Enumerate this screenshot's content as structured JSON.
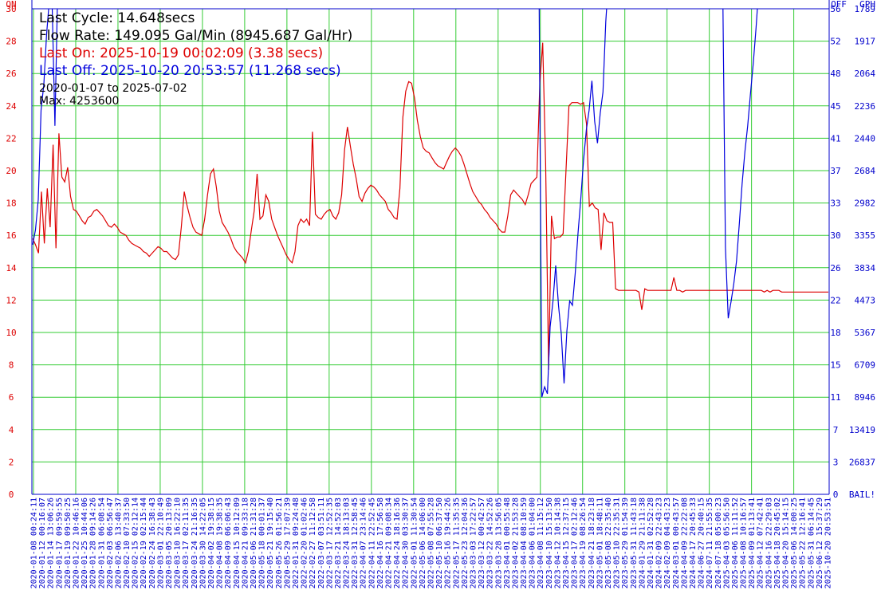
{
  "info": {
    "last_cycle": "Last Cycle: 14.648secs",
    "flow_rate": "Flow Rate: 149.095 Gal/Min (8945.687 Gal/Hr)",
    "last_on": "Last On: 2025-10-19 00:02:09 (3.38 secs)",
    "last_off": "Last Off: 2025-10-20 20:53:57 (11.268 secs)",
    "date_range": "2020-01-07 to 2025-07-02",
    "max": "Max: 4253600"
  },
  "colors": {
    "on_series": "#dd0000",
    "off_series": "#0000dd",
    "grid": "#33cc33",
    "axis": "#0000cc",
    "left_axis_text": "#dd0000",
    "text": "#000000"
  },
  "chart_data": {
    "type": "line",
    "grid": true,
    "left_axis": {
      "header": "ON",
      "ticks": [
        0,
        2,
        4,
        6,
        8,
        10,
        12,
        14,
        16,
        18,
        20,
        22,
        24,
        26,
        28,
        30
      ],
      "ylim": [
        0,
        30
      ]
    },
    "right_axis": {
      "header_off": "OFF",
      "header_gph": "GPH",
      "off_ticks": [
        "0",
        "3",
        "7",
        "11",
        "15",
        "18",
        "22",
        "26",
        "30",
        "33",
        "37",
        "41",
        "45",
        "48",
        "52",
        "56"
      ],
      "gph_ticks": [
        "BAIL!",
        "26837",
        "13419",
        "8946",
        "6709",
        "5367",
        "4473",
        "3834",
        "3355",
        "2982",
        "2684",
        "2440",
        "2236",
        "2064",
        "1917",
        "1789"
      ],
      "ylim": [
        0,
        56
      ]
    },
    "x_labels": [
      "2020-01-08 00:24:11",
      "2020-01-12 00:16:07",
      "2020-01-14 13:06:26",
      "2020-01-17 09:59:55",
      "2020-01-19 09:50:25",
      "2020-01-22 10:46:16",
      "2020-01-25 10:44:06",
      "2020-01-28 09:14:26",
      "2020-01-31 06:08:54",
      "2020-02-03 06:56:47",
      "2020-02-06 13:40:37",
      "2020-02-10 07:33:50",
      "2020-02-15 02:12:14",
      "2020-02-19 02:15:44",
      "2020-02-24 16:38:43",
      "2020-03-01 22:10:49",
      "2020-03-05 20:13:09",
      "2020-03-10 16:22:10",
      "2020-03-17 02:11:35",
      "2020-03-24 21:16:35",
      "2020-03-30 14:22:05",
      "2020-04-02 19:38:15",
      "2020-04-08 19:38:35",
      "2020-04-09 06:06:43",
      "2020-04-15 10:12:09",
      "2020-04-21 09:33:18",
      "2020-05-06 21:31:28",
      "2020-05-18 00:01:37",
      "2020-05-21 19:15:40",
      "2020-05-26 01:56:21",
      "2020-05-29 17:07:39",
      "2022-01-31 09:24:48",
      "2022-02-20 01:02:46",
      "2022-02-27 11:12:58",
      "2022-03-07 03:51:11",
      "2022-03-17 12:52:35",
      "2022-03-21 14:52:03",
      "2022-03-24 18:13:03",
      "2022-03-31 12:58:45",
      "2022-04-07 23:14:46",
      "2022-04-11 22:52:45",
      "2022-04-16 17:56:58",
      "2022-04-21 09:08:34",
      "2022-04-24 18:16:36",
      "2022-04-30 03:30:37",
      "2022-05-01 11:30:54",
      "2022-05-06 14:06:00",
      "2022-05-08 07:55:28",
      "2022-05-10 06:37:50",
      "2022-05-16 19:44:26",
      "2022-05-17 11:35:35",
      "2022-05-23 12:04:36",
      "2023-03-03 17:22:57",
      "2023-03-12 00:42:57",
      "2023-03-22 14:52:26",
      "2023-03-28 13:56:05",
      "2023-04-01 00:55:48",
      "2023-04-02 21:53:28",
      "2023-04-04 08:10:59",
      "2023-04-06 01:04:00",
      "2023-04-08 11:15:12",
      "2023-04-10 15:13:50",
      "2023-04-12 10:14:38",
      "2023-04-15 12:37:15",
      "2023-04-17 02:12:46",
      "2023-04-19 08:26:54",
      "2023-04-21 18:23:18",
      "2023-05-01 18:48:11",
      "2023-05-08 22:35:40",
      "2023-05-10 22:35:31",
      "2023-05-29 01:54:39",
      "2023-05-31 11:43:18",
      "2024-01-29 21:11:38",
      "2024-01-31 02:52:28",
      "2024-02-09 22:43:23",
      "2024-02-09 04:43:23",
      "2024-03-01 00:43:57",
      "2024-04-09 22:22:08",
      "2024-04-17 20:45:33",
      "2024-06-27 20:40:15",
      "2024-07-11 21:55:35",
      "2024-07-18 05:00:23",
      "2025-04-03 05:56:50",
      "2025-04-06 11:11:52",
      "2025-04-08 10:16:57",
      "2025-04-09 01:13:41",
      "2025-04-12 07:42:41",
      "2025-04-16 22:29:03",
      "2025-04-18 20:45:02",
      "2025-04-20 15:14:15",
      "2025-05-06 14:00:25",
      "2025-05-22 12:16:41",
      "2025-05-31 06:14:45",
      "2025-06-12 15:37:29",
      "2025-10-20 20:53:51"
    ],
    "series": [
      {
        "name": "Last On",
        "axis": "left",
        "values": [
          15.8,
          15.4,
          14.9,
          18.7,
          15.5,
          18.9,
          16.5,
          21.6,
          15.2,
          22.3,
          19.6,
          19.3,
          20.2,
          18.4,
          17.6,
          17.5,
          17.2,
          16.9,
          16.7,
          17.1,
          17.2,
          17.5,
          17.6,
          17.4,
          17.2,
          16.9,
          16.6,
          16.5,
          16.7,
          16.5,
          16.2,
          16.1,
          16,
          15.7,
          15.5,
          15.4,
          15.3,
          15.2,
          15,
          14.9,
          14.7,
          14.9,
          15.1,
          15.3,
          15.2,
          15,
          15,
          14.8,
          14.6,
          14.5,
          14.8,
          16.5,
          18.7,
          17.8,
          17.1,
          16.5,
          16.2,
          16.1,
          16,
          17,
          18.5,
          19.8,
          20.1,
          19,
          17.5,
          16.8,
          16.5,
          16.2,
          15.8,
          15.3,
          15,
          14.8,
          14.6,
          14.3,
          15,
          16.3,
          17.5,
          19.8,
          17,
          17.2,
          18.5,
          18.1,
          17,
          16.5,
          16,
          15.6,
          15.2,
          14.8,
          14.5,
          14.3,
          15,
          16.6,
          17,
          16.8,
          17,
          16.6,
          22.4,
          17.3,
          17.1,
          17,
          17.3,
          17.5,
          17.6,
          17.2,
          17,
          17.4,
          18.5,
          21.3,
          22.7,
          21.5,
          20.4,
          19.5,
          18.4,
          18.1,
          18.6,
          18.9,
          19.1,
          19,
          18.8,
          18.5,
          18.3,
          18.1,
          17.6,
          17.4,
          17.1,
          17,
          18.9,
          23.3,
          24.9,
          25.5,
          25.4,
          24.5,
          23.1,
          22.1,
          21.4,
          21.2,
          21.1,
          20.8,
          20.5,
          20.3,
          20.2,
          20.1,
          20.5,
          20.9,
          21.2,
          21.4,
          21.2,
          20.9,
          20.4,
          19.8,
          19.2,
          18.7,
          18.4,
          18.1,
          17.9,
          17.6,
          17.4,
          17.1,
          16.9,
          16.7,
          16.4,
          16.2,
          16.2,
          17.2,
          18.5,
          18.8,
          18.6,
          18.4,
          18.2,
          17.9,
          18.5,
          19.2,
          19.4,
          19.6,
          25.4,
          27.9,
          20.4,
          7.7,
          17.2,
          15.8,
          15.9,
          15.9,
          16.1,
          20.1,
          24,
          24.2,
          24.2,
          24.2,
          24.1,
          24.2,
          22.9,
          17.8,
          18,
          17.7,
          17.6,
          15.1,
          17.4,
          16.9,
          16.8,
          16.8,
          12.7,
          12.6,
          12.6,
          12.6,
          12.6,
          12.6,
          12.6,
          12.6,
          12.5,
          11.4,
          12.7,
          12.6,
          12.6,
          12.6,
          12.6,
          12.6,
          12.6,
          12.6,
          12.6,
          12.6,
          13.4,
          12.6,
          12.6,
          12.5,
          12.6,
          12.6,
          12.6,
          12.6,
          12.6,
          12.6,
          12.6,
          12.6,
          12.6,
          12.6,
          12.6,
          12.6,
          12.6,
          12.6,
          12.6,
          12.6,
          12.6,
          12.6,
          12.6,
          12.6,
          12.6,
          12.6,
          12.6,
          12.6,
          12.6,
          12.6,
          12.6,
          12.5,
          12.6,
          12.5,
          12.6,
          12.6,
          12.6,
          12.5,
          12.5,
          12.5,
          12.5,
          12.5,
          12.5,
          12.5,
          12.5,
          12.5,
          12.5,
          12.5,
          12.5,
          12.5,
          12.5,
          12.5,
          12.5,
          12.5
        ]
      },
      {
        "name": "Last Off",
        "axis": "right",
        "values": [
          28.8,
          30.5,
          34,
          44.3,
          47.3,
          53,
          57,
          56.5,
          42.5,
          58.5,
          58.8,
          58.8,
          58.8,
          58.8,
          58.8,
          58.8,
          58.8,
          58.8,
          58.8,
          58.8,
          58.8,
          58.8,
          58.8,
          58.8,
          58.8,
          58.8,
          58.8,
          58.8,
          58.8,
          58.8,
          58.8,
          58.8,
          58.8,
          58.8,
          58.8,
          58.8,
          58.8,
          58.8,
          58.8,
          58.8,
          58.8,
          58.8,
          58.8,
          58.8,
          58.8,
          58.8,
          58.8,
          58.8,
          58.8,
          58.8,
          58.8,
          58.8,
          58.8,
          58.8,
          58.8,
          58.8,
          58.8,
          58.8,
          58.8,
          58.8,
          58.8,
          58.8,
          58.8,
          58.8,
          58.8,
          58.8,
          58.8,
          58.8,
          58.8,
          58.8,
          58.8,
          58.8,
          58.8,
          58.8,
          58.8,
          58.8,
          58.8,
          58.8,
          58.8,
          58.8,
          58.8,
          58.8,
          58.8,
          58.8,
          58.8,
          58.8,
          58.8,
          58.8,
          58.8,
          58.8,
          58.8,
          58.8,
          58.8,
          58.8,
          58.8,
          58.8,
          58.8,
          58.8,
          58.8,
          58.8,
          58.8,
          58.8,
          58.8,
          58.8,
          58.8,
          58.8,
          58.8,
          58.8,
          58.8,
          58.8,
          58.8,
          58.8,
          58.8,
          58.8,
          58.8,
          58.8,
          58.8,
          58.8,
          58.8,
          58.8,
          58.8,
          58.8,
          58.8,
          58.8,
          58.8,
          58.8,
          58.8,
          58.8,
          58.8,
          58.8,
          58.8,
          58.8,
          58.8,
          58.8,
          58.8,
          58.8,
          58.8,
          58.8,
          58.8,
          58.8,
          58.8,
          58.8,
          58.8,
          58.8,
          58.8,
          58.8,
          58.8,
          58.8,
          58.8,
          58.8,
          58.8,
          58.8,
          58.8,
          58.8,
          58.8,
          58.8,
          58.8,
          58.8,
          58.8,
          58.8,
          58.8,
          58.8,
          58.8,
          58.8,
          58.8,
          58.8,
          58.8,
          58.8,
          58.8,
          58.8,
          58.8,
          58.8,
          58.8,
          58.8,
          58.8,
          58.8,
          58.8,
          58.8,
          58.8,
          58.8,
          58.8,
          58.8,
          58.8,
          11.2,
          12.4,
          11.6,
          19.3,
          22.2,
          26.4,
          21.8,
          18.5,
          12.8,
          18.8,
          22.3,
          21.8,
          25.5,
          30,
          34,
          38.5,
          42,
          44.3,
          47.7,
          43,
          40.5,
          44,
          46.4,
          54.5,
          59.5,
          58.8,
          58.8,
          58.8,
          58.8,
          58.8,
          58.8,
          58.8,
          58.8,
          58.8,
          58.8,
          58.8,
          58.8,
          58.8,
          58.8,
          58.8,
          58.8,
          58.8,
          58.8,
          58.8,
          58.8,
          58.8,
          58.8,
          58.8,
          58.8,
          58.8,
          58.8,
          58.8,
          58.8,
          58.8,
          58.8,
          58.8,
          58.8,
          58.8,
          58.8,
          58.8,
          58.8,
          58.8,
          58.8,
          58.8,
          58.8,
          59.5,
          28.5,
          20.3,
          22.2,
          24.3,
          26.9,
          31.2,
          35.8,
          39.5,
          42.5,
          46.2,
          49.7,
          53.8,
          58.5,
          58.8,
          58.8,
          58.8,
          58.8,
          58.8,
          58.8,
          58.8,
          58.8,
          58.8,
          58.8,
          58.8,
          58.8,
          58.8,
          58.8,
          58.8,
          58.8,
          58.8,
          58.8,
          58.8,
          58.8,
          58.8,
          58.8,
          58.8,
          58.8,
          58.8
        ]
      }
    ]
  }
}
